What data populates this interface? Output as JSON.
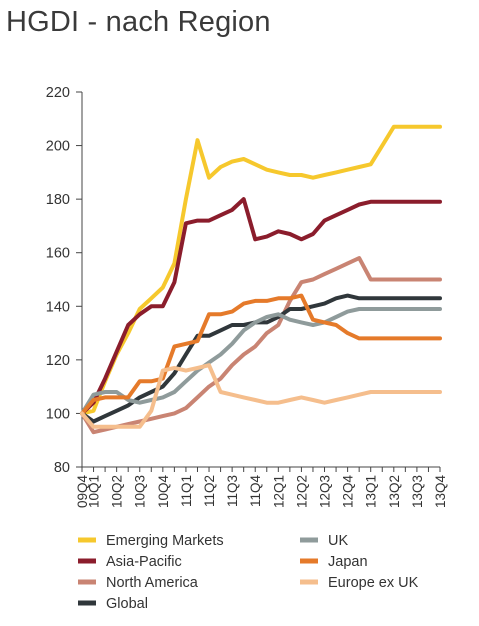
{
  "chart_data": {
    "type": "line",
    "title": "HGDI - nach Region",
    "xlabel": "",
    "ylabel": "",
    "ylim": [
      80,
      220
    ],
    "yticks": [
      80,
      100,
      120,
      140,
      160,
      180,
      200,
      220
    ],
    "grid": false,
    "legend_position": "bottom",
    "x": [
      "09Q4",
      "10Q1",
      "",
      "10Q2",
      "",
      "10Q3",
      "",
      "10Q4",
      "",
      "11Q1",
      "",
      "11Q2",
      "",
      "11Q3",
      "",
      "11Q4",
      "",
      "12Q1",
      "",
      "12Q2",
      "",
      "12Q3",
      "",
      "12Q4",
      "",
      "13Q1",
      "",
      "13Q2",
      "",
      "13Q3",
      "",
      "13Q4"
    ],
    "series": [
      {
        "name": "Emerging Markets",
        "color": "#f6c82d",
        "values": [
          100,
          101,
          112,
          122,
          130,
          139,
          143,
          147,
          156,
          180,
          202,
          188,
          192,
          194,
          195,
          193,
          191,
          190,
          189,
          189,
          188,
          189,
          190,
          191,
          192,
          193,
          200,
          207,
          207,
          207,
          207,
          207
        ]
      },
      {
        "name": "Asia-Pacific",
        "color": "#8b1d2c",
        "values": [
          100,
          104,
          113,
          123,
          133,
          137,
          140,
          140,
          149,
          171,
          172,
          172,
          174,
          176,
          180,
          165,
          166,
          168,
          167,
          165,
          167,
          172,
          174,
          176,
          178,
          179,
          179,
          179,
          179,
          179,
          179,
          179
        ]
      },
      {
        "name": "North America",
        "color": "#c98473",
        "values": [
          100,
          93,
          94,
          95,
          96,
          97,
          98,
          99,
          100,
          102,
          106,
          110,
          113,
          118,
          122,
          125,
          130,
          133,
          142,
          149,
          150,
          152,
          154,
          156,
          158,
          150,
          150,
          150,
          150,
          150,
          150,
          150
        ]
      },
      {
        "name": "Global",
        "color": "#30373b",
        "values": [
          100,
          97,
          99,
          101,
          103,
          106,
          108,
          110,
          115,
          122,
          129,
          129,
          131,
          133,
          133,
          134,
          134,
          136,
          139,
          139,
          140,
          141,
          143,
          144,
          143,
          143,
          143,
          143,
          143,
          143,
          143,
          143
        ]
      },
      {
        "name": "UK",
        "color": "#8f9b9b",
        "values": [
          100,
          107,
          108,
          108,
          105,
          104,
          105,
          106,
          108,
          112,
          116,
          119,
          122,
          126,
          131,
          134,
          136,
          137,
          135,
          134,
          133,
          134,
          136,
          138,
          139,
          139,
          139,
          139,
          139,
          139,
          139,
          139
        ]
      },
      {
        "name": "Japan",
        "color": "#e57a2a",
        "values": [
          100,
          105,
          106,
          106,
          106,
          112,
          112,
          113,
          125,
          126,
          127,
          137,
          137,
          138,
          141,
          142,
          142,
          143,
          143,
          144,
          135,
          134,
          133,
          130,
          128,
          128,
          128,
          128,
          128,
          128,
          128,
          128
        ]
      },
      {
        "name": "Europe ex UK",
        "color": "#f5be8d",
        "values": [
          100,
          95,
          95,
          95,
          95,
          95,
          101,
          116,
          117,
          116,
          117,
          118,
          108,
          107,
          106,
          105,
          104,
          104,
          105,
          106,
          105,
          104,
          105,
          106,
          107,
          108,
          108,
          108,
          108,
          108,
          108,
          108
        ]
      }
    ]
  }
}
